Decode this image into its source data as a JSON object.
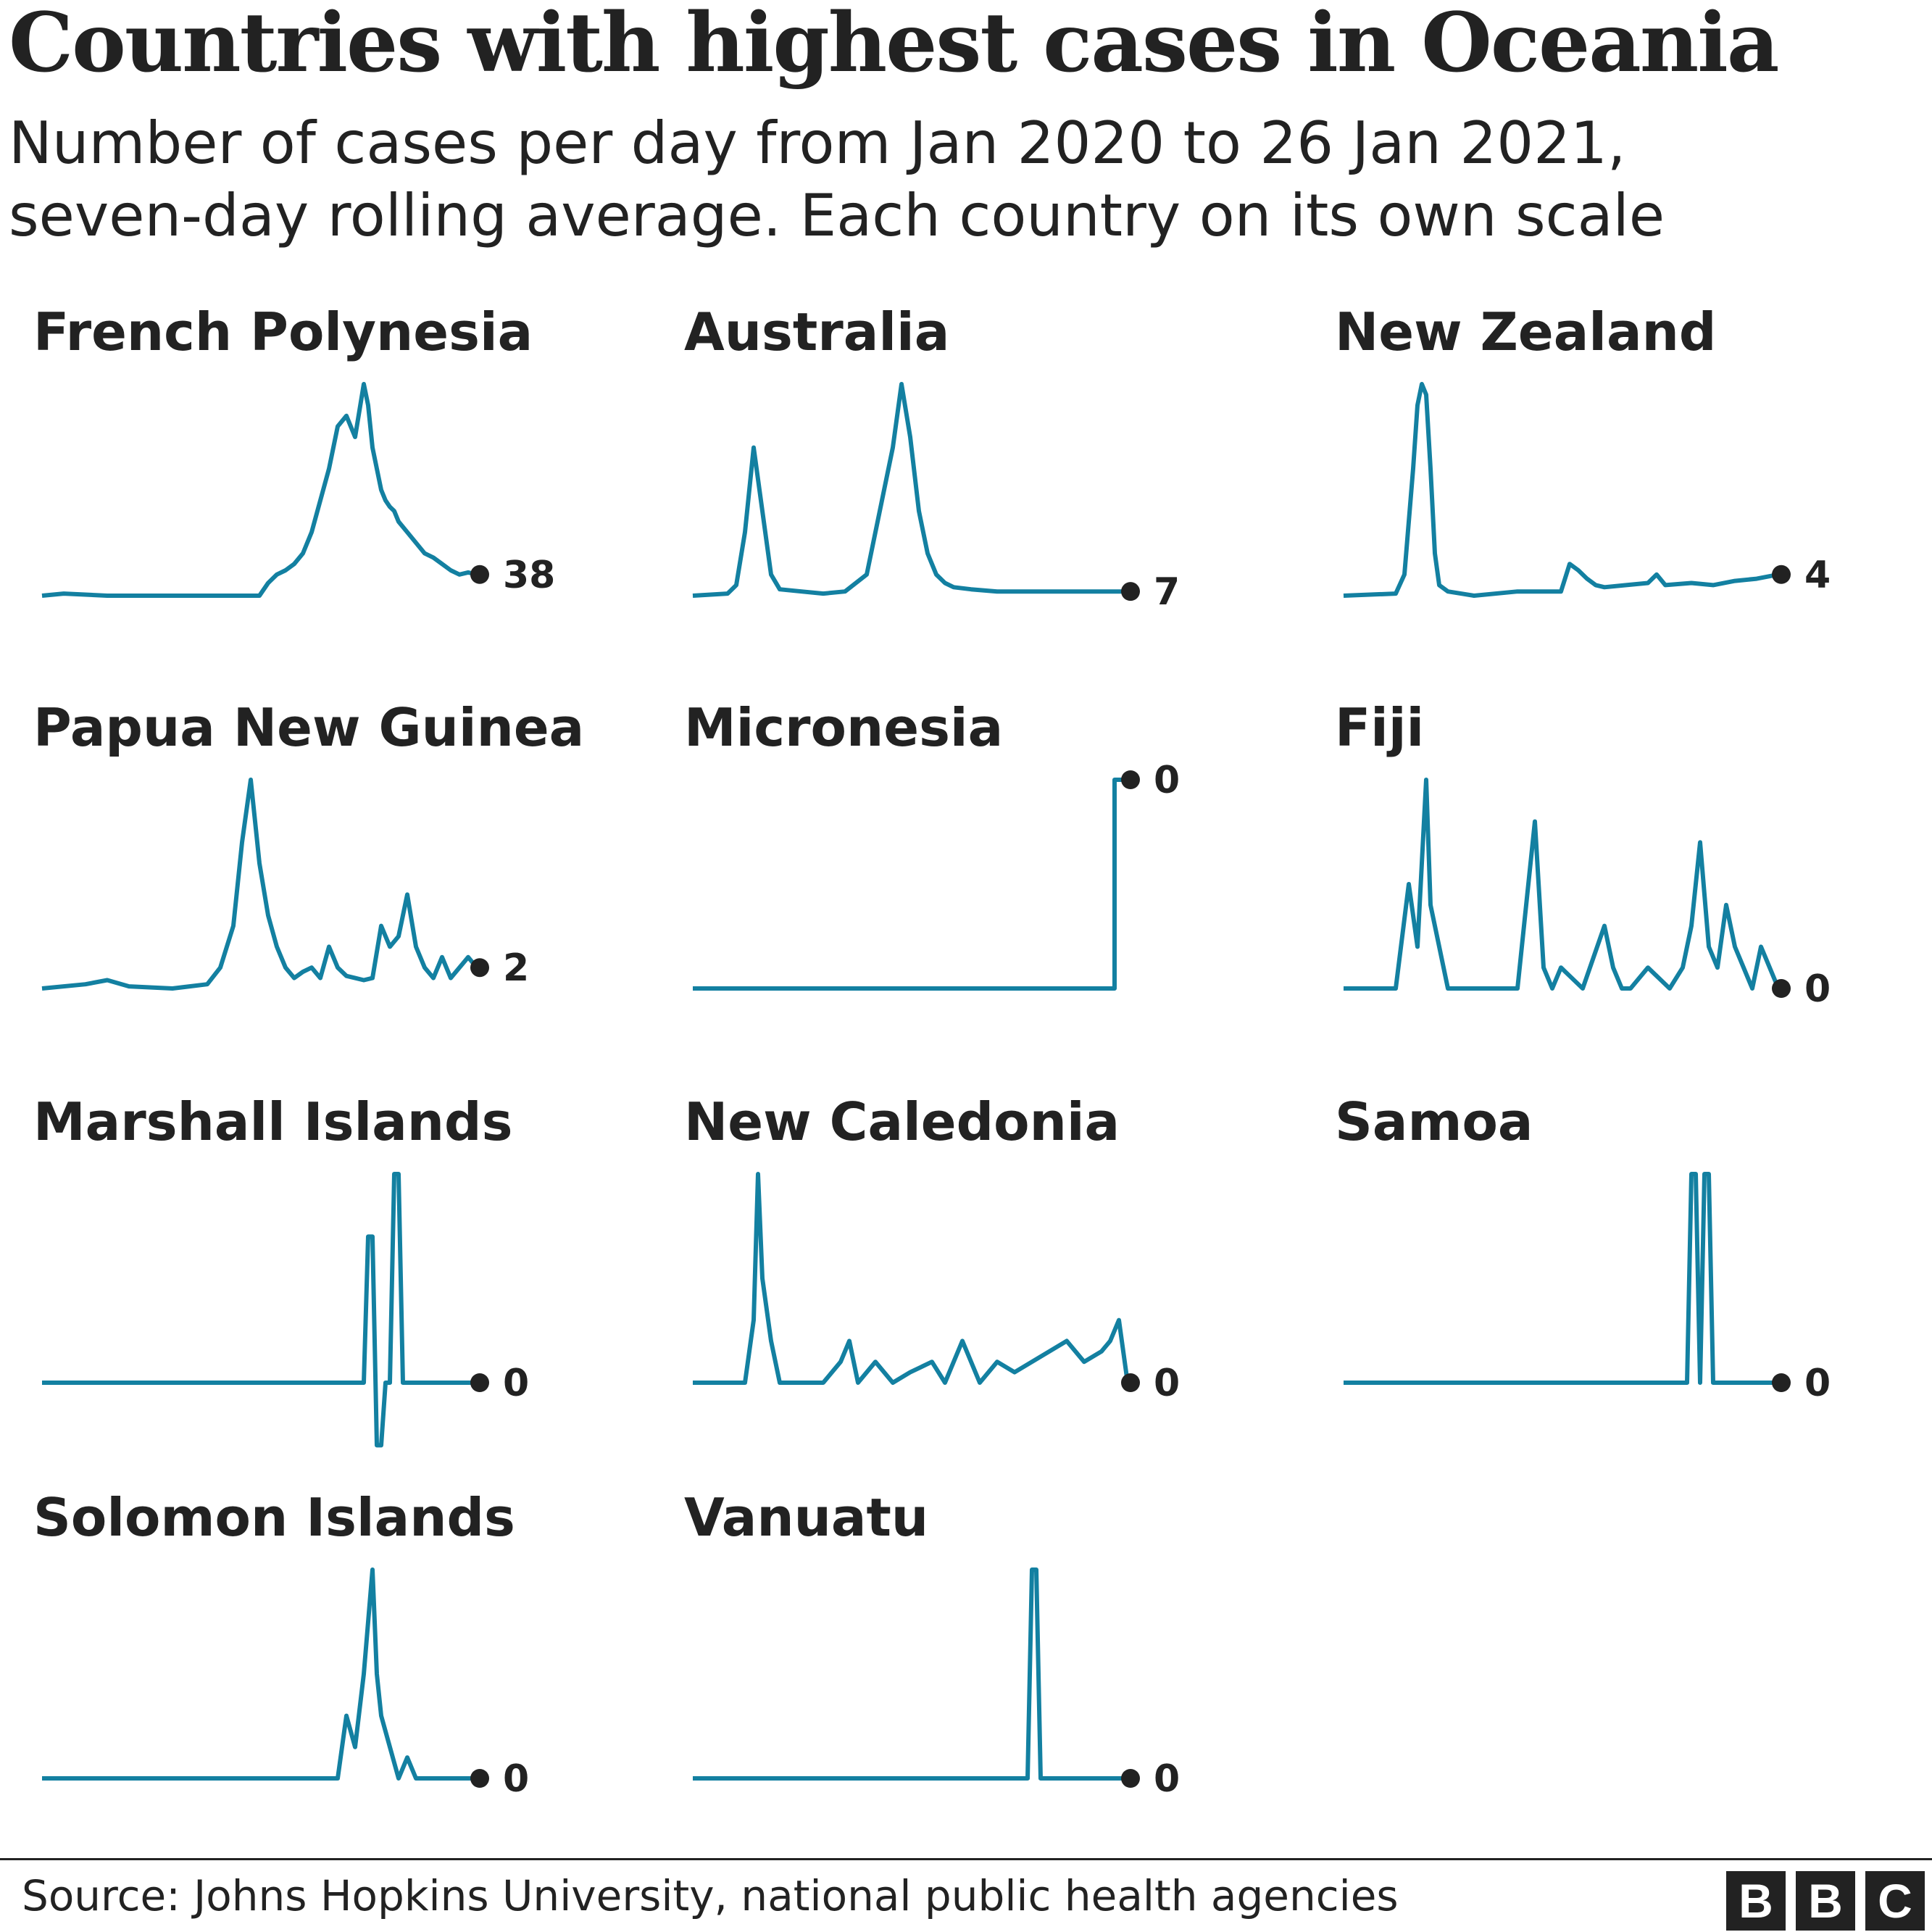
{
  "header": {
    "title": "Countries with highest cases in Oceania",
    "subtitle_line1": "Number of cases per day from Jan 2020 to 26 Jan 2021,",
    "subtitle_line2": "seven-day rolling average. Each country on its own scale"
  },
  "footer": {
    "source": "Source: Johns Hopkins University, national public health agencies",
    "logo_letters": [
      "B",
      "B",
      "C"
    ]
  },
  "colors": {
    "line": "#1380A1",
    "text": "#222222",
    "dot": "#222222",
    "background": "#ffffff"
  },
  "chart_data": [
    {
      "type": "line",
      "title": "French Polynesia",
      "end_value": "38",
      "scale": "own",
      "x": [
        0,
        0.05,
        0.15,
        0.3,
        0.5,
        0.52,
        0.54,
        0.56,
        0.58,
        0.6,
        0.62,
        0.64,
        0.66,
        0.68,
        0.7,
        0.72,
        0.74,
        0.75,
        0.76,
        0.77,
        0.78,
        0.79,
        0.8,
        0.81,
        0.82,
        0.84,
        0.86,
        0.88,
        0.9,
        0.92,
        0.94,
        0.96,
        0.98,
        1
      ],
      "values": [
        0,
        0.01,
        0,
        0,
        0,
        0.06,
        0.1,
        0.12,
        0.15,
        0.2,
        0.3,
        0.45,
        0.6,
        0.8,
        0.85,
        0.75,
        1.0,
        0.9,
        0.7,
        0.6,
        0.5,
        0.45,
        0.42,
        0.4,
        0.35,
        0.3,
        0.25,
        0.2,
        0.18,
        0.15,
        0.12,
        0.1,
        0.11,
        0.1
      ]
    },
    {
      "type": "line",
      "title": "Australia",
      "end_value": "7",
      "scale": "own",
      "x": [
        0,
        0.08,
        0.1,
        0.12,
        0.14,
        0.16,
        0.18,
        0.2,
        0.25,
        0.3,
        0.35,
        0.4,
        0.42,
        0.44,
        0.46,
        0.48,
        0.5,
        0.52,
        0.54,
        0.56,
        0.58,
        0.6,
        0.64,
        0.7,
        0.8,
        0.9,
        1
      ],
      "values": [
        0,
        0.01,
        0.05,
        0.3,
        0.7,
        0.4,
        0.1,
        0.03,
        0.02,
        0.01,
        0.02,
        0.1,
        0.3,
        0.5,
        0.7,
        1.0,
        0.75,
        0.4,
        0.2,
        0.1,
        0.06,
        0.04,
        0.03,
        0.02,
        0.02,
        0.02,
        0.02
      ]
    },
    {
      "type": "line",
      "title": "New Zealand",
      "end_value": "4",
      "scale": "own",
      "x": [
        0,
        0.12,
        0.14,
        0.16,
        0.17,
        0.18,
        0.19,
        0.2,
        0.21,
        0.22,
        0.24,
        0.27,
        0.3,
        0.4,
        0.5,
        0.52,
        0.54,
        0.56,
        0.58,
        0.6,
        0.65,
        0.7,
        0.72,
        0.74,
        0.8,
        0.85,
        0.9,
        0.95,
        1
      ],
      "values": [
        0,
        0.01,
        0.1,
        0.6,
        0.9,
        1.0,
        0.95,
        0.6,
        0.2,
        0.05,
        0.02,
        0.01,
        0,
        0.02,
        0.02,
        0.15,
        0.12,
        0.08,
        0.05,
        0.04,
        0.05,
        0.06,
        0.1,
        0.05,
        0.06,
        0.05,
        0.07,
        0.08,
        0.1
      ]
    },
    {
      "type": "line",
      "title": "Papua New Guinea",
      "end_value": "2",
      "scale": "own",
      "x": [
        0,
        0.1,
        0.15,
        0.2,
        0.3,
        0.38,
        0.41,
        0.44,
        0.46,
        0.48,
        0.5,
        0.52,
        0.54,
        0.56,
        0.58,
        0.6,
        0.62,
        0.64,
        0.66,
        0.68,
        0.7,
        0.72,
        0.74,
        0.76,
        0.78,
        0.8,
        0.82,
        0.84,
        0.86,
        0.88,
        0.9,
        0.92,
        0.94,
        0.96,
        0.98,
        1
      ],
      "values": [
        0,
        0.02,
        0.04,
        0.01,
        0,
        0.02,
        0.1,
        0.3,
        0.7,
        1.0,
        0.6,
        0.35,
        0.2,
        0.1,
        0.05,
        0.08,
        0.1,
        0.05,
        0.2,
        0.1,
        0.06,
        0.05,
        0.04,
        0.05,
        0.3,
        0.2,
        0.25,
        0.45,
        0.2,
        0.1,
        0.05,
        0.15,
        0.05,
        0.1,
        0.15,
        0.1
      ]
    },
    {
      "type": "line",
      "title": "Micronesia",
      "end_value": "0",
      "scale": "own",
      "x": [
        0,
        0.97,
        0.97,
        0.99,
        1
      ],
      "values": [
        0,
        0,
        1,
        1,
        1
      ]
    },
    {
      "type": "line",
      "title": "Fiji",
      "end_value": "0",
      "scale": "own",
      "x": [
        0,
        0.12,
        0.15,
        0.17,
        0.18,
        0.19,
        0.2,
        0.22,
        0.24,
        0.26,
        0.3,
        0.4,
        0.44,
        0.46,
        0.48,
        0.5,
        0.55,
        0.6,
        0.62,
        0.64,
        0.66,
        0.7,
        0.75,
        0.78,
        0.8,
        0.82,
        0.84,
        0.86,
        0.88,
        0.9,
        0.92,
        0.94,
        0.96,
        0.98,
        1
      ],
      "values": [
        0,
        0,
        0.5,
        0.2,
        0.6,
        1.0,
        0.4,
        0.2,
        0,
        0,
        0,
        0,
        0.8,
        0.1,
        0,
        0.1,
        0,
        0.3,
        0.1,
        0,
        0,
        0.1,
        0,
        0.1,
        0.3,
        0.7,
        0.2,
        0.1,
        0.4,
        0.2,
        0.1,
        0,
        0.2,
        0.1,
        0
      ]
    },
    {
      "type": "line",
      "title": "Marshall Islands",
      "end_value": "0",
      "scale": "own",
      "x": [
        0,
        0.74,
        0.75,
        0.76,
        0.77,
        0.78,
        0.79,
        0.8,
        0.81,
        0.82,
        0.83,
        0.84,
        0.85,
        0.86,
        1
      ],
      "values": [
        0,
        0,
        0.7,
        0.7,
        -0.3,
        -0.3,
        0,
        0,
        1,
        1,
        0,
        0,
        0,
        0,
        0
      ]
    },
    {
      "type": "line",
      "title": "New Caledonia",
      "end_value": "0",
      "scale": "own",
      "x": [
        0,
        0.12,
        0.14,
        0.15,
        0.16,
        0.18,
        0.2,
        0.25,
        0.3,
        0.34,
        0.36,
        0.38,
        0.42,
        0.46,
        0.5,
        0.55,
        0.58,
        0.62,
        0.66,
        0.7,
        0.74,
        0.78,
        0.82,
        0.86,
        0.9,
        0.94,
        0.96,
        0.98,
        1
      ],
      "values": [
        0,
        0,
        0.3,
        1.0,
        0.5,
        0.2,
        0,
        0,
        0,
        0.1,
        0.2,
        0,
        0.1,
        0,
        0.05,
        0.1,
        0,
        0.2,
        0,
        0.1,
        0.05,
        0.1,
        0.15,
        0.2,
        0.1,
        0.15,
        0.2,
        0.3,
        0
      ]
    },
    {
      "type": "line",
      "title": "Samoa",
      "end_value": "0",
      "scale": "own",
      "x": [
        0,
        0.79,
        0.8,
        0.81,
        0.82,
        0.83,
        0.84,
        0.85,
        0.86,
        1
      ],
      "values": [
        0,
        0,
        1,
        1,
        0,
        1,
        1,
        0,
        0,
        0
      ]
    },
    {
      "type": "line",
      "title": "Solomon Islands",
      "end_value": "0",
      "scale": "own",
      "x": [
        0,
        0.68,
        0.7,
        0.72,
        0.74,
        0.76,
        0.77,
        0.78,
        0.8,
        0.82,
        0.84,
        0.86,
        0.88,
        0.9,
        1
      ],
      "values": [
        0,
        0,
        0.3,
        0.15,
        0.5,
        1.0,
        0.5,
        0.3,
        0.15,
        0,
        0.1,
        0,
        0,
        0,
        0
      ]
    },
    {
      "type": "line",
      "title": "Vanuatu",
      "end_value": "0",
      "scale": "own",
      "x": [
        0,
        0.77,
        0.78,
        0.79,
        0.8,
        0.81,
        1
      ],
      "values": [
        0,
        0,
        1,
        1,
        0,
        0,
        0
      ]
    }
  ]
}
